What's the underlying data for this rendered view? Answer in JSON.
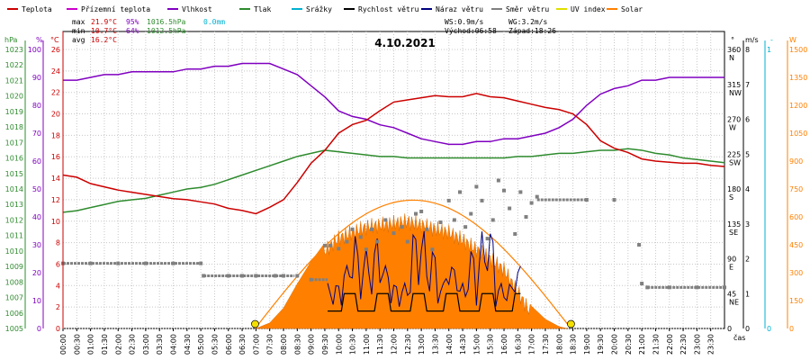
{
  "chart_data": {
    "type": "line",
    "title": "4.10.2021",
    "xlabel": "čas",
    "legend": [
      {
        "label": "Teplota",
        "color": "#cc0000"
      },
      {
        "label": "Přízemní teplota",
        "color": "#cc00cc"
      },
      {
        "label": "Vlhkost",
        "color": "#8000c0"
      },
      {
        "label": "Tlak",
        "color": "#2e8b2e"
      },
      {
        "label": "Srážky",
        "color": "#00b0d0"
      },
      {
        "label": "Rychlost větru",
        "color": "#000000"
      },
      {
        "label": "Náraz větru",
        "color": "#000080"
      },
      {
        "label": "Směr větru",
        "color": "#808080"
      },
      {
        "label": "UV index",
        "color": "#e0e000"
      },
      {
        "label": "Solar",
        "color": "#ff8000"
      }
    ],
    "stats": {
      "max_label": "max",
      "max_temp": "21.9°C",
      "max_hum": "95%",
      "max_press": "1016.5hPa",
      "rain": "0.0mm",
      "min_label": "min",
      "min_temp": "10.7°C",
      "min_hum": "64%",
      "min_press": "1012.5hPa",
      "avg_label": "avg",
      "avg_temp": "16.2°C",
      "wind_avg": "WS:0.9m/s",
      "wind_gust": "WG:3.2m/s",
      "sunrise": "Východ:06:58",
      "sunset": "Západ:18:26"
    },
    "axes": {
      "hpa_unit": "hPa",
      "hum_unit": "%",
      "temp_unit": "°C",
      "dir_unit": "°",
      "ms_unit": "m/s",
      "uv_unit": "-",
      "solar_unit": "W",
      "hpa_ticks": [
        "1005",
        "1006",
        "1007",
        "1008",
        "1009",
        "1010",
        "1011",
        "1012",
        "1013",
        "1014",
        "1015",
        "1016",
        "1017",
        "1018",
        "1019",
        "1020",
        "1021",
        "1022",
        "1023"
      ],
      "hum_ticks": [
        "0",
        "10",
        "20",
        "30",
        "40",
        "50",
        "60",
        "70",
        "80",
        "90",
        "100"
      ],
      "temp_ticks": [
        "0",
        "2",
        "4",
        "6",
        "8",
        "10",
        "12",
        "14",
        "16",
        "18",
        "20",
        "22",
        "24",
        "26"
      ],
      "dir_ticks": [
        "0",
        "45",
        "90",
        "135",
        "180",
        "225",
        "270",
        "315",
        "360"
      ],
      "dir_names": [
        "",
        "NE",
        "E",
        "SE",
        "S",
        "SW",
        "W",
        "NW",
        "N"
      ],
      "ms_ticks": [
        "0",
        "1",
        "2",
        "3",
        "4",
        "5",
        "6",
        "7",
        "8"
      ],
      "uv_ticks": [
        "0",
        "1"
      ],
      "solar_ticks": [
        "0",
        "150",
        "300",
        "450",
        "600",
        "750",
        "900",
        "1050",
        "1200",
        "1350",
        "1500"
      ],
      "x_ticks": [
        "00:00",
        "00:30",
        "01:00",
        "01:30",
        "02:00",
        "02:30",
        "03:00",
        "03:30",
        "04:00",
        "04:30",
        "05:00",
        "05:30",
        "06:00",
        "06:30",
        "07:00",
        "07:30",
        "08:00",
        "08:30",
        "09:00",
        "09:30",
        "10:00",
        "10:30",
        "11:00",
        "11:30",
        "12:00",
        "12:30",
        "13:00",
        "13:30",
        "14:00",
        "14:30",
        "15:00",
        "15:30",
        "16:00",
        "16:30",
        "17:00",
        "17:30",
        "18:00",
        "18:30",
        "19:00",
        "19:30",
        "20:00",
        "20:30",
        "21:00",
        "21:30",
        "22:00",
        "22:30",
        "23:00",
        "23:30"
      ]
    },
    "series": [
      {
        "name": "Teplota",
        "unit": "°C",
        "x": [
          0,
          0.5,
          1,
          1.5,
          2,
          2.5,
          3,
          3.5,
          4,
          4.5,
          5,
          5.5,
          6,
          6.5,
          7,
          7.5,
          8,
          8.5,
          9,
          9.5,
          10,
          10.5,
          11,
          11.5,
          12,
          12.5,
          13,
          13.5,
          14,
          14.5,
          15,
          15.5,
          16,
          16.5,
          17,
          17.5,
          18,
          18.5,
          19,
          19.5,
          20,
          20.5,
          21,
          21.5,
          22,
          22.5,
          23,
          23.5,
          24
        ],
        "y": [
          14.3,
          14.1,
          13.5,
          13.2,
          12.9,
          12.7,
          12.5,
          12.3,
          12.1,
          12.0,
          11.8,
          11.6,
          11.2,
          11.0,
          10.7,
          11.3,
          12.0,
          13.6,
          15.4,
          16.6,
          18.2,
          19.0,
          19.4,
          20.3,
          21.1,
          21.3,
          21.5,
          21.7,
          21.6,
          21.6,
          21.9,
          21.6,
          21.5,
          21.2,
          20.9,
          20.6,
          20.4,
          20.0,
          19.0,
          17.5,
          16.8,
          16.4,
          15.8,
          15.6,
          15.5,
          15.4,
          15.4,
          15.2,
          15.1
        ]
      },
      {
        "name": "Vlhkost",
        "unit": "%",
        "x": [
          0,
          0.5,
          1,
          1.5,
          2,
          2.5,
          3,
          3.5,
          4,
          4.5,
          5,
          5.5,
          6,
          6.5,
          7,
          7.5,
          8,
          8.5,
          9,
          9.5,
          10,
          10.5,
          11,
          11.5,
          12,
          12.5,
          13,
          13.5,
          14,
          14.5,
          15,
          15.5,
          16,
          16.5,
          17,
          17.5,
          18,
          18.5,
          19,
          19.5,
          20,
          20.5,
          21,
          21.5,
          22,
          22.5,
          23,
          23.5,
          24
        ],
        "y": [
          89,
          89,
          90,
          91,
          91,
          92,
          92,
          92,
          92,
          93,
          93,
          94,
          94,
          95,
          95,
          95,
          93,
          91,
          87,
          83,
          78,
          76,
          75,
          73,
          72,
          70,
          68,
          67,
          66,
          66,
          67,
          67,
          68,
          68,
          69,
          70,
          72,
          75,
          80,
          84,
          86,
          87,
          89,
          89,
          90,
          90,
          90,
          90,
          90
        ]
      },
      {
        "name": "Tlak",
        "unit": "hPa",
        "x": [
          0,
          0.5,
          1,
          1.5,
          2,
          2.5,
          3,
          3.5,
          4,
          4.5,
          5,
          5.5,
          6,
          6.5,
          7,
          7.5,
          8,
          8.5,
          9,
          9.5,
          10,
          10.5,
          11,
          11.5,
          12,
          12.5,
          13,
          13.5,
          14,
          14.5,
          15,
          15.5,
          16,
          16.5,
          17,
          17.5,
          18,
          18.5,
          19,
          19.5,
          20,
          20.5,
          21,
          21.5,
          22,
          22.5,
          23,
          23.5,
          24
        ],
        "y": [
          1012.5,
          1012.6,
          1012.8,
          1013.0,
          1013.2,
          1013.3,
          1013.4,
          1013.6,
          1013.8,
          1014.0,
          1014.1,
          1014.3,
          1014.6,
          1014.9,
          1015.2,
          1015.5,
          1015.8,
          1016.1,
          1016.3,
          1016.5,
          1016.4,
          1016.3,
          1016.2,
          1016.1,
          1016.1,
          1016.0,
          1016.0,
          1016.0,
          1016.0,
          1016.0,
          1016.0,
          1016.0,
          1016.0,
          1016.1,
          1016.1,
          1016.2,
          1016.3,
          1016.3,
          1016.4,
          1016.5,
          1016.5,
          1016.6,
          1016.5,
          1016.3,
          1016.2,
          1016.0,
          1015.9,
          1015.8,
          1015.7
        ]
      },
      {
        "name": "Směr větru",
        "unit": "°",
        "x": [
          0,
          1,
          2,
          3,
          4,
          5,
          5.1,
          6,
          6.5,
          7,
          7.7,
          8,
          8.5,
          9,
          9.5,
          9.7,
          10,
          10.3,
          10.5,
          10.8,
          11,
          11.2,
          11.4,
          11.7,
          12,
          12.3,
          12.5,
          12.8,
          13,
          13.2,
          13.4,
          13.7,
          14,
          14.2,
          14.4,
          14.6,
          14.8,
          15,
          15.2,
          15.4,
          15.6,
          15.8,
          16,
          16.2,
          16.4,
          16.6,
          16.8,
          17,
          17.2,
          19,
          20,
          20.9,
          21,
          21.2,
          22,
          23,
          24
        ],
        "y": [
          84,
          84,
          84,
          84,
          84,
          84,
          68,
          68,
          68,
          68,
          68,
          68,
          68,
          63,
          107,
          107,
          103,
          112,
          128,
          118,
          102,
          128,
          112,
          140,
          123,
          131,
          112,
          148,
          151,
          128,
          102,
          137,
          165,
          140,
          176,
          131,
          148,
          183,
          165,
          116,
          140,
          191,
          178,
          155,
          122,
          176,
          144,
          162,
          170,
          166,
          166,
          108,
          58,
          53,
          53,
          53,
          53
        ]
      },
      {
        "name": "Solar",
        "unit": "W",
        "x": [
          7.0,
          7.5,
          8,
          8.5,
          9,
          9.5,
          10,
          10.5,
          11,
          11.5,
          12,
          12.5,
          13,
          13.5,
          14,
          14.5,
          15,
          15.5,
          16,
          16.5,
          17,
          17.5,
          18,
          18.3
        ],
        "y": [
          0,
          30,
          110,
          240,
          360,
          460,
          530,
          560,
          590,
          600,
          610,
          620,
          600,
          580,
          560,
          520,
          470,
          420,
          360,
          240,
          120,
          50,
          10,
          0
        ]
      }
    ]
  }
}
